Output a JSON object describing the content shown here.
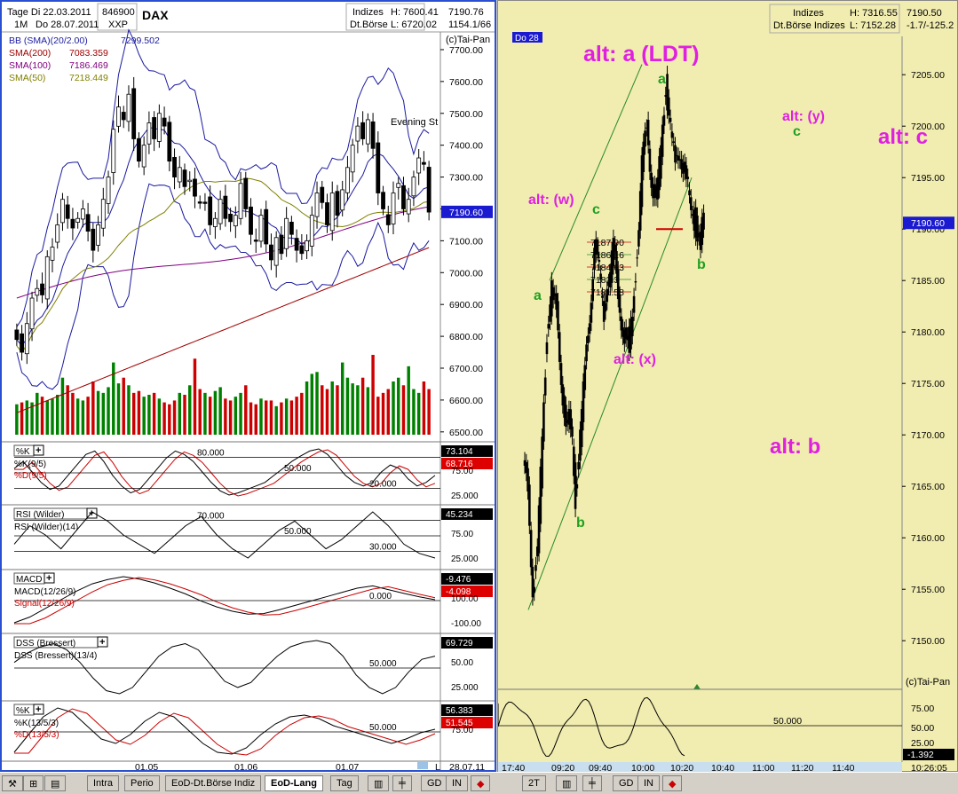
{
  "left_header": {
    "tage": "Tage Di 22.03.2011",
    "range_end": "Do 28.07.2011",
    "period": "1M",
    "wkn": "846900",
    "exchange": "XXP",
    "symbol": "DAX",
    "box_1": "Indizes",
    "box_2": "Dt.Börse",
    "high_label": "H: 7600.41",
    "low_label": "L: 6720.02",
    "last": "7190.76",
    "change": "1154.1/66",
    "source": "(c)Tai-Pan"
  },
  "overlays": [
    {
      "name": "BB (SMA)(20/2.00)",
      "value": "7299.502",
      "color": "#1a1aa0"
    },
    {
      "name": "SMA(200)",
      "value": "7083.359",
      "color": "#a00000"
    },
    {
      "name": "SMA(100)",
      "value": "7186.469",
      "color": "#800080"
    },
    {
      "name": "SMA(50)",
      "value": "7218.449",
      "color": "#808000"
    }
  ],
  "colors": {
    "up_volume": "#008000",
    "down_volume": "#cc0000",
    "bollinger": "#1a1aa0",
    "sma200": "#a00000",
    "sma100": "#800080",
    "sma50": "#808000",
    "label_magenta": "#e020e0",
    "label_green": "#20a020",
    "right_bg": "#f1ecb0"
  },
  "left_chart": {
    "price_ticks": [
      "7700.00",
      "7600.00",
      "7500.00",
      "7400.00",
      "7300.00",
      "7200.00",
      "7100.00",
      "7000.00",
      "6900.00",
      "6800.00",
      "6700.00",
      "6600.00",
      "6500.00"
    ],
    "last_price_tag": "7190.60",
    "annotation": "Evening St",
    "date_ticks": [
      "01.05",
      "01.06",
      "01.07"
    ],
    "end_date": "28.07.11",
    "corner_letter": "L"
  },
  "chart_data": [
    {
      "type": "candlestick",
      "name": "DAX daily",
      "ylim": [
        6480,
        7750
      ],
      "ohlc_approx_close": [
        6790,
        6750,
        6840,
        6920,
        6950,
        6930,
        7050,
        7080,
        7150,
        7230,
        7170,
        7140,
        7170,
        7200,
        7130,
        7070,
        7150,
        7230,
        7300,
        7450,
        7520,
        7480,
        7560,
        7420,
        7350,
        7400,
        7470,
        7420,
        7500,
        7460,
        7350,
        7300,
        7330,
        7270,
        7290,
        7240,
        7220,
        7220,
        7150,
        7170,
        7230,
        7170,
        7160,
        7180,
        7280,
        7200,
        7120,
        7100,
        7180,
        7090,
        7040,
        7110,
        7060,
        7170,
        7120,
        7070,
        7060,
        7100,
        7180,
        7250,
        7220,
        7150,
        7250,
        7180,
        7260,
        7330,
        7400,
        7460,
        7420,
        7480,
        7390,
        7250,
        7200,
        7150,
        7250,
        7280,
        7200,
        7230,
        7300,
        7360,
        7340,
        7190
      ]
    },
    {
      "type": "bar",
      "name": "Volume",
      "values": [
        16,
        17,
        18,
        17,
        22,
        20,
        18,
        19,
        21,
        30,
        26,
        22,
        19,
        18,
        20,
        28,
        23,
        22,
        25,
        38,
        27,
        30,
        26,
        22,
        23,
        20,
        21,
        22,
        19,
        17,
        16,
        18,
        22,
        21,
        26,
        40,
        24,
        22,
        20,
        23,
        25,
        19,
        18,
        20,
        22,
        26,
        17,
        16,
        19,
        18,
        18,
        15,
        17,
        19,
        18,
        20,
        22,
        28,
        32,
        33,
        26,
        24,
        28,
        26,
        38,
        30,
        27,
        26,
        30,
        25,
        42,
        20,
        22,
        24,
        28,
        30,
        26,
        36,
        24,
        22,
        28,
        24
      ]
    },
    {
      "type": "line",
      "name": "%K(9/5) / %D(9/5)",
      "series": [
        {
          "name": "%K(9/5)",
          "last": "73.104"
        },
        {
          "name": "%D(9/5)",
          "last": "68.716"
        }
      ],
      "reference_levels": [
        "80.000",
        "50.000",
        "20.000"
      ],
      "ticks": [
        "75.00",
        "25.000"
      ],
      "box_label": "%K",
      "values": [
        60,
        70,
        55,
        40,
        30,
        35,
        50,
        65,
        80,
        85,
        70,
        50,
        35,
        25,
        30,
        45,
        60,
        75,
        85,
        80,
        70,
        55,
        40,
        28,
        22,
        25,
        30,
        35,
        40,
        50,
        60,
        70,
        78,
        85,
        88,
        80,
        65,
        50,
        40,
        35,
        40,
        55,
        65,
        60,
        45,
        35,
        40,
        50
      ]
    },
    {
      "type": "line",
      "name": "RSI (Wilder)(14)",
      "last": "45.234",
      "reference_levels": [
        "70.000",
        "50.000",
        "30.000"
      ],
      "ticks": [
        "75.00",
        "25.000"
      ],
      "box_label": "RSI (Wilder)",
      "values": [
        48,
        52,
        50,
        47,
        51,
        55,
        53,
        50,
        48,
        46,
        49,
        52,
        54,
        50,
        47,
        45,
        48,
        51,
        53,
        50,
        47,
        49,
        52,
        55,
        52,
        48,
        46,
        45
      ]
    },
    {
      "type": "line",
      "name": "MACD(12/26/9)",
      "series": [
        {
          "name": "MACD(12/26/9)",
          "last": "-9.476"
        },
        {
          "name": "Signal(12/26/9)",
          "last": "-4.098"
        }
      ],
      "reference_levels": [
        "0.000"
      ],
      "ticks": [
        "100.00",
        "-100.00"
      ],
      "box_label": "MACD",
      "values": [
        -90,
        -70,
        -40,
        -10,
        20,
        45,
        60,
        70,
        62,
        48,
        30,
        10,
        -15,
        -35,
        -50,
        -60,
        -58,
        -45,
        -30,
        -15,
        0,
        15,
        30,
        38,
        25,
        12,
        0,
        -10
      ]
    },
    {
      "type": "line",
      "name": "DSS (Bressert)(13/4)",
      "last": "69.729",
      "reference_levels": [
        "50.000"
      ],
      "ticks": [
        "50.00",
        "25.000"
      ],
      "box_label": "DSS (Bressert)",
      "values": [
        60,
        75,
        85,
        90,
        80,
        60,
        35,
        15,
        10,
        20,
        45,
        70,
        85,
        90,
        80,
        55,
        30,
        20,
        28,
        50,
        70,
        85,
        92,
        95,
        90,
        70,
        40,
        20,
        10,
        20,
        45,
        65,
        70
      ]
    },
    {
      "type": "line",
      "name": "%K(13/5/3) / %D(13/5/3)",
      "series": [
        {
          "name": "%K(13/5/3)",
          "last": "56.383"
        },
        {
          "name": "%D(13/5/3)",
          "last": "51.545"
        }
      ],
      "reference_levels": [
        "50.000"
      ],
      "ticks": [
        "75.00"
      ],
      "box_label": "%K",
      "values": [
        30,
        50,
        70,
        80,
        75,
        60,
        45,
        40,
        50,
        65,
        75,
        70,
        55,
        40,
        30,
        28,
        35,
        50,
        62,
        70,
        72,
        68,
        60,
        55,
        50,
        45,
        40,
        45,
        52,
        56
      ]
    },
    {
      "type": "line",
      "name": "DAX intraday 2T",
      "ylim": [
        7147,
        7207
      ],
      "values": [
        7165,
        7155,
        7158,
        7170,
        7180,
        7184,
        7182,
        7176,
        7170,
        7172,
        7164,
        7170,
        7176,
        7182,
        7188,
        7186,
        7182,
        7185,
        7188,
        7184,
        7180,
        7178,
        7182,
        7188,
        7196,
        7200,
        7195,
        7192,
        7198,
        7204,
        7200,
        7196,
        7198,
        7195,
        7193,
        7191,
        7189,
        7190.6
      ]
    }
  ],
  "right_header": {
    "date_tag": "Do 28",
    "box_1": "Indizes",
    "box_2": "Dt.Börse Indizes",
    "high_label": "H: 7316.55",
    "low_label": "L: 7152.28",
    "last": "7190.50",
    "change": "-1.7/-125.2",
    "source": "(c)Tai-Pan"
  },
  "right_chart": {
    "price_ticks": [
      "7205.00",
      "7200.00",
      "7195.00",
      "7190.00",
      "7185.00",
      "7180.00",
      "7175.00",
      "7170.00",
      "7165.00",
      "7160.00",
      "7155.00",
      "7150.00"
    ],
    "last_price_tag": "7190.60",
    "time_ticks": [
      "17:40",
      "09:20",
      "09:40",
      "10:00",
      "10:20",
      "10:40",
      "11:00",
      "11:20",
      "11:40"
    ],
    "clock": "10:26:05",
    "fib_levels": [
      "7187.90",
      "7186.16",
      "7184.63",
      "7182.3",
      "7181.58"
    ],
    "labels": {
      "alt_a": "alt: a (LDT)",
      "alt_c": "alt: c",
      "alt_b": "alt: b",
      "alt_w": "alt: (w)",
      "alt_x": "alt: (x)",
      "alt_y": "alt: (y)",
      "wave_a1": "a",
      "wave_a2": "a",
      "wave_b1": "b",
      "wave_b2": "b",
      "wave_c1": "c",
      "wave_c2": "c"
    },
    "osc_ticks": [
      "75.00",
      "50.00",
      "25.00"
    ],
    "osc_level": "50.000",
    "osc_last": "-1.392"
  },
  "toolbar": {
    "left_tabs": [
      "Intra",
      "Perio",
      "EoD-Dt.Börse Indiz",
      "EoD-Lang"
    ],
    "tag_label": "Tag",
    "gd": "GD",
    "in": "IN",
    "right_period": "2T"
  }
}
